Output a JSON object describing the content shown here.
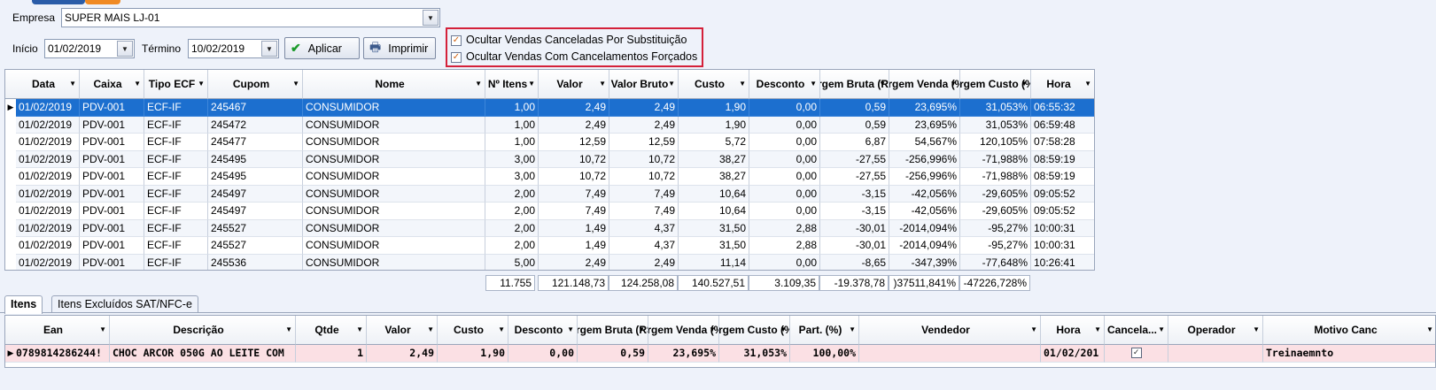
{
  "filters": {
    "empresa_label": "Empresa",
    "empresa_value": "SUPER MAIS LJ-01",
    "inicio_label": "Início",
    "inicio_value": "01/02/2019",
    "termino_label": "Término",
    "termino_value": "10/02/2019",
    "aplicar_label": "Aplicar",
    "imprimir_label": "Imprimir",
    "chk_canceladas": "Ocultar Vendas Canceladas Por Substituição",
    "chk_forcados": "Ocultar Vendas Com Cancelamentos Forçados"
  },
  "sales_grid": {
    "headers": [
      "Data",
      "Caixa",
      "Tipo ECF",
      "Cupom",
      "Nome",
      "Nº Itens",
      "Valor",
      "Valor Bruto",
      "Custo",
      "Desconto",
      "Margem Bruta (R$)",
      "Margem Venda (%)",
      "Margem Custo (%)",
      "Hora"
    ],
    "rows": [
      [
        "01/02/2019",
        "PDV-001",
        "ECF-IF",
        "245467",
        "CONSUMIDOR",
        "1,00",
        "2,49",
        "2,49",
        "1,90",
        "0,00",
        "0,59",
        "23,695%",
        "31,053%",
        "06:55:32"
      ],
      [
        "01/02/2019",
        "PDV-001",
        "ECF-IF",
        "245472",
        "CONSUMIDOR",
        "1,00",
        "2,49",
        "2,49",
        "1,90",
        "0,00",
        "0,59",
        "23,695%",
        "31,053%",
        "06:59:48"
      ],
      [
        "01/02/2019",
        "PDV-001",
        "ECF-IF",
        "245477",
        "CONSUMIDOR",
        "1,00",
        "12,59",
        "12,59",
        "5,72",
        "0,00",
        "6,87",
        "54,567%",
        "120,105%",
        "07:58:28"
      ],
      [
        "01/02/2019",
        "PDV-001",
        "ECF-IF",
        "245495",
        "CONSUMIDOR",
        "3,00",
        "10,72",
        "10,72",
        "38,27",
        "0,00",
        "-27,55",
        "-256,996%",
        "-71,988%",
        "08:59:19"
      ],
      [
        "01/02/2019",
        "PDV-001",
        "ECF-IF",
        "245495",
        "CONSUMIDOR",
        "3,00",
        "10,72",
        "10,72",
        "38,27",
        "0,00",
        "-27,55",
        "-256,996%",
        "-71,988%",
        "08:59:19"
      ],
      [
        "01/02/2019",
        "PDV-001",
        "ECF-IF",
        "245497",
        "CONSUMIDOR",
        "2,00",
        "7,49",
        "7,49",
        "10,64",
        "0,00",
        "-3,15",
        "-42,056%",
        "-29,605%",
        "09:05:52"
      ],
      [
        "01/02/2019",
        "PDV-001",
        "ECF-IF",
        "245497",
        "CONSUMIDOR",
        "2,00",
        "7,49",
        "7,49",
        "10,64",
        "0,00",
        "-3,15",
        "-42,056%",
        "-29,605%",
        "09:05:52"
      ],
      [
        "01/02/2019",
        "PDV-001",
        "ECF-IF",
        "245527",
        "CONSUMIDOR",
        "2,00",
        "1,49",
        "4,37",
        "31,50",
        "2,88",
        "-30,01",
        "-2014,094%",
        "-95,27%",
        "10:00:31"
      ],
      [
        "01/02/2019",
        "PDV-001",
        "ECF-IF",
        "245527",
        "CONSUMIDOR",
        "2,00",
        "1,49",
        "4,37",
        "31,50",
        "2,88",
        "-30,01",
        "-2014,094%",
        "-95,27%",
        "10:00:31"
      ],
      [
        "01/02/2019",
        "PDV-001",
        "ECF-IF",
        "245536",
        "CONSUMIDOR",
        "5,00",
        "2,49",
        "2,49",
        "11,14",
        "0,00",
        "-8,65",
        "-347,39%",
        "-77,648%",
        "10:26:41"
      ]
    ],
    "totals": [
      "11.755",
      "121.148,73",
      "124.258,08",
      "140.527,51",
      "3.109,35",
      "-19.378,78",
      ")37511,841%",
      "-47226,728%"
    ]
  },
  "tabs": [
    "Itens",
    "Itens Excluídos SAT/NFC-e"
  ],
  "items_grid": {
    "headers": [
      "Ean",
      "Descrição",
      "Qtde",
      "Valor",
      "Custo",
      "Desconto",
      "Margem Bruta (R$)",
      "Margem Venda (%)",
      "Margem Custo (%)",
      "Part. (%)",
      "Vendedor",
      "Hora",
      "Cancela...",
      "Operador",
      "Motivo Canc"
    ],
    "rows": [
      [
        "0789814286244!",
        "CHOC ARCOR 050G AO LEITE COM",
        "1",
        "2,49",
        "1,90",
        "0,00",
        "0,59",
        "23,695%",
        "31,053%",
        "100,00%",
        "",
        "01/02/201",
        "✓",
        "",
        "Treinaemnto"
      ]
    ]
  }
}
